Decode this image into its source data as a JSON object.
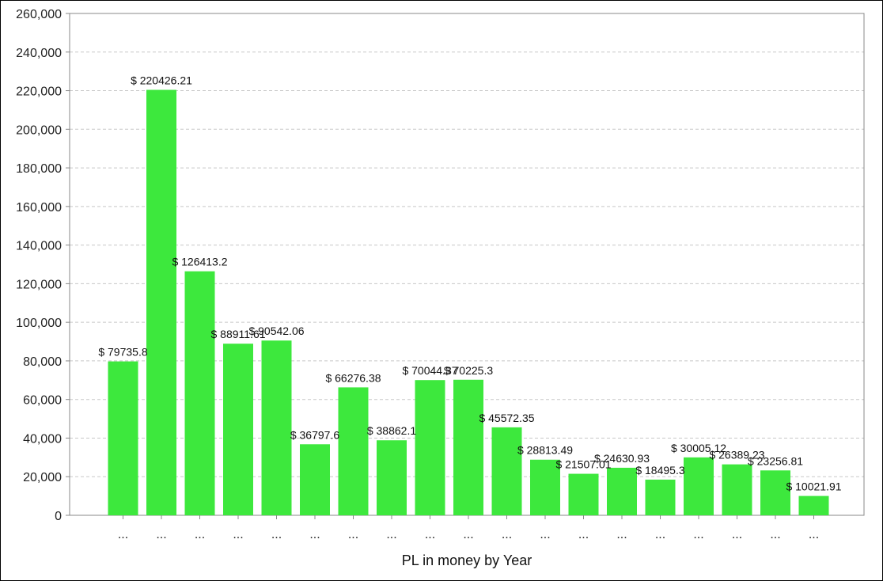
{
  "colors": {
    "bar": "#3de83d",
    "grid": "#c8c8c8",
    "axis": "#888888"
  },
  "chart_data": {
    "type": "bar",
    "xlabel": "PL in money by Year",
    "ylabel": "",
    "ylim": [
      0,
      260000
    ],
    "yticks": [
      {
        "value": 0,
        "label": "0"
      },
      {
        "value": 20000,
        "label": "20,000"
      },
      {
        "value": 40000,
        "label": "40,000"
      },
      {
        "value": 60000,
        "label": "60,000"
      },
      {
        "value": 80000,
        "label": "80,000"
      },
      {
        "value": 100000,
        "label": "100,000"
      },
      {
        "value": 120000,
        "label": "120,000"
      },
      {
        "value": 140000,
        "label": "140,000"
      },
      {
        "value": 160000,
        "label": "160,000"
      },
      {
        "value": 180000,
        "label": "180,000"
      },
      {
        "value": 200000,
        "label": "200,000"
      },
      {
        "value": 220000,
        "label": "220,000"
      },
      {
        "value": 240000,
        "label": "240,000"
      },
      {
        "value": 260000,
        "label": "260,000"
      }
    ],
    "grid": true,
    "categories": [
      "...",
      "...",
      "...",
      "...",
      "...",
      "...",
      "...",
      "...",
      "...",
      "...",
      "...",
      "...",
      "...",
      "...",
      "...",
      "...",
      "...",
      "...",
      "..."
    ],
    "values": [
      79735.8,
      220426.21,
      126413.2,
      88911.61,
      90542.06,
      36797.6,
      66276.38,
      38862.1,
      70044.37,
      70225.3,
      45572.35,
      28813.49,
      21507.01,
      24630.93,
      18495.3,
      30005.12,
      26389.23,
      23256.81,
      10021.91
    ],
    "data_labels": [
      "$ 79735.8",
      "$ 220426.21",
      "$ 126413.2",
      "$ 88911.61",
      "$ 90542.06",
      "$ 36797.6",
      "$ 66276.38",
      "$ 38862.1",
      "$ 70044.37",
      "$ 70225.3",
      "$ 45572.35",
      "$ 28813.49",
      "$ 21507.01",
      "$ 24630.93",
      "$ 18495.3",
      "$ 30005.12",
      "$ 26389.23",
      "$ 23256.81",
      "$ 10021.91"
    ]
  }
}
